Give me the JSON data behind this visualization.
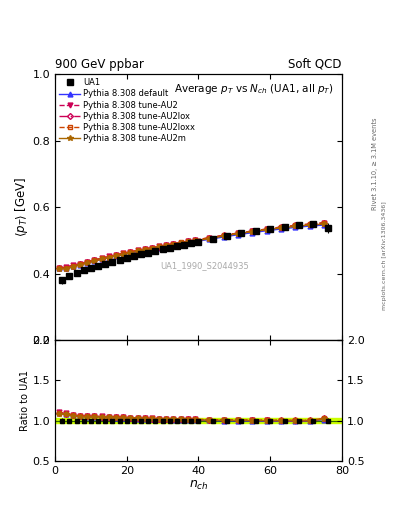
{
  "header_left": "900 GeV ppbar",
  "header_right": "Soft QCD",
  "title_main": "Average $p_T$ vs $N_{ch}$ (UA1, all $p_T$)",
  "right_label_top": "Rivet 3.1.10, ≥ 3.1M events",
  "right_label_bottom": "mcplots.cern.ch [arXiv:1306.3436]",
  "watermark": "UA1_1990_S2044935",
  "xlabel": "$n_{ch}$",
  "ylabel_main": "$\\langle p_T \\rangle$ [GeV]",
  "ylabel_ratio": "Ratio to UA1",
  "ylim_main": [
    0.2,
    1.0
  ],
  "ylim_ratio": [
    0.5,
    2.0
  ],
  "xlim": [
    0,
    80
  ],
  "yticks_main": [
    0.2,
    0.4,
    0.6,
    0.8,
    1.0
  ],
  "yticks_ratio": [
    0.5,
    1.0,
    1.5,
    2.0
  ],
  "xticks": [
    0,
    20,
    40,
    60,
    80
  ],
  "data_nch": [
    2,
    4,
    6,
    8,
    10,
    12,
    14,
    16,
    18,
    20,
    22,
    24,
    26,
    28,
    30,
    32,
    34,
    36,
    38,
    40,
    44,
    48,
    52,
    56,
    60,
    64,
    68,
    72,
    76
  ],
  "ua1_pt": [
    0.38,
    0.392,
    0.402,
    0.41,
    0.416,
    0.422,
    0.428,
    0.434,
    0.44,
    0.446,
    0.452,
    0.458,
    0.463,
    0.468,
    0.473,
    0.478,
    0.482,
    0.487,
    0.491,
    0.496,
    0.505,
    0.513,
    0.521,
    0.528,
    0.534,
    0.54,
    0.545,
    0.549,
    0.536
  ],
  "ua1_err": [
    0.01,
    0.008,
    0.007,
    0.006,
    0.005,
    0.005,
    0.005,
    0.005,
    0.005,
    0.005,
    0.005,
    0.005,
    0.005,
    0.005,
    0.005,
    0.005,
    0.005,
    0.005,
    0.005,
    0.005,
    0.005,
    0.005,
    0.005,
    0.005,
    0.005,
    0.005,
    0.008,
    0.01,
    0.015
  ],
  "mc_nch": [
    1,
    3,
    5,
    7,
    9,
    11,
    13,
    15,
    17,
    19,
    21,
    23,
    25,
    27,
    29,
    31,
    33,
    35,
    37,
    39,
    43,
    47,
    51,
    55,
    59,
    63,
    67,
    71,
    75
  ],
  "default_pt": [
    0.418,
    0.418,
    0.422,
    0.427,
    0.433,
    0.438,
    0.443,
    0.448,
    0.453,
    0.457,
    0.462,
    0.466,
    0.47,
    0.474,
    0.478,
    0.482,
    0.485,
    0.489,
    0.493,
    0.496,
    0.503,
    0.51,
    0.517,
    0.523,
    0.529,
    0.534,
    0.539,
    0.543,
    0.546
  ],
  "au2_pt": [
    0.418,
    0.42,
    0.425,
    0.43,
    0.436,
    0.441,
    0.447,
    0.452,
    0.456,
    0.461,
    0.465,
    0.47,
    0.474,
    0.478,
    0.482,
    0.486,
    0.49,
    0.493,
    0.497,
    0.5,
    0.507,
    0.514,
    0.521,
    0.527,
    0.533,
    0.538,
    0.543,
    0.547,
    0.551
  ],
  "au2lox_pt": [
    0.416,
    0.418,
    0.423,
    0.428,
    0.434,
    0.44,
    0.445,
    0.45,
    0.455,
    0.46,
    0.464,
    0.469,
    0.473,
    0.477,
    0.481,
    0.485,
    0.489,
    0.493,
    0.497,
    0.5,
    0.508,
    0.515,
    0.522,
    0.528,
    0.534,
    0.54,
    0.545,
    0.549,
    0.553
  ],
  "au2loxx_pt": [
    0.416,
    0.418,
    0.423,
    0.428,
    0.435,
    0.441,
    0.446,
    0.451,
    0.456,
    0.461,
    0.465,
    0.47,
    0.474,
    0.478,
    0.482,
    0.486,
    0.49,
    0.494,
    0.497,
    0.501,
    0.508,
    0.515,
    0.522,
    0.528,
    0.534,
    0.54,
    0.545,
    0.549,
    0.553
  ],
  "au2m_pt": [
    0.413,
    0.415,
    0.42,
    0.425,
    0.431,
    0.437,
    0.443,
    0.448,
    0.453,
    0.457,
    0.462,
    0.467,
    0.471,
    0.475,
    0.479,
    0.483,
    0.487,
    0.491,
    0.495,
    0.498,
    0.505,
    0.513,
    0.52,
    0.526,
    0.532,
    0.537,
    0.542,
    0.546,
    0.549
  ],
  "color_default": "#3333ff",
  "color_au2": "#cc0055",
  "color_au2lox": "#cc0055",
  "color_au2loxx": "#cc4400",
  "color_au2m": "#aa6600",
  "color_ratio_band_face": "#ccff00",
  "color_ratio_band_edge": "#88cc00",
  "legend_entries": [
    "UA1",
    "Pythia 8.308 default",
    "Pythia 8.308 tune-AU2",
    "Pythia 8.308 tune-AU2lox",
    "Pythia 8.308 tune-AU2loxx",
    "Pythia 8.308 tune-AU2m"
  ]
}
